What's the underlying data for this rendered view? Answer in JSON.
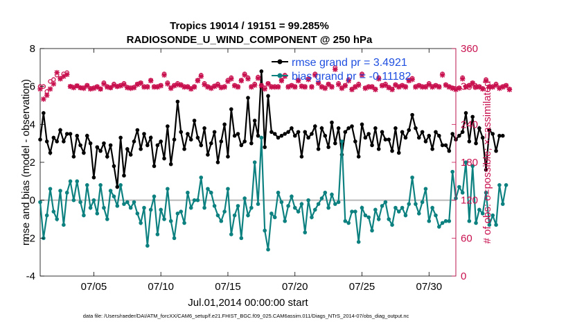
{
  "chart_data": {
    "type": "line",
    "title_line1": "Tropics 19014 / 19151 = 99.285%",
    "title_line2": "RADIOSONDE_U_WIND_COMPONENT @ 250 hPa",
    "xlabel": "Jul.01,2014 00:00:00 start",
    "ylabel_left": "rmse and bias (model - observation)",
    "ylabel_right": "# of obs: o=possible; ×=assimilated",
    "footer": "data file: /Users/raeder/DAI/ATM_forcXX/CAM6_setup/f.e21.FHIST_BGC.f09_025.CAM6assim.011/Diags_NTrS_2014-07/obs_diag_output.nc",
    "xlim": [
      1,
      32
    ],
    "ylim_left": [
      -4,
      8
    ],
    "ylim_right": [
      0,
      360
    ],
    "x_ticks": [
      5,
      10,
      15,
      20,
      25,
      30
    ],
    "x_tick_labels": [
      "07/05",
      "07/10",
      "07/15",
      "07/20",
      "07/25",
      "07/30"
    ],
    "y_left_ticks": [
      -4,
      -2,
      0,
      2,
      4,
      6,
      8
    ],
    "y_left_tick_labels": [
      "-4",
      "-2",
      "0",
      "2",
      "4",
      "6",
      "8"
    ],
    "y_right_ticks": [
      0,
      60,
      120,
      180,
      240,
      300,
      360
    ],
    "y_right_tick_labels": [
      "0",
      "60",
      "120",
      "180",
      "240",
      "300",
      "360"
    ],
    "zero_line": 0,
    "start_x": 1.0,
    "step": 0.25,
    "series": [
      {
        "name": "rmse grand pr = 3.4921",
        "color": "#000000",
        "marker": "star",
        "values": [
          3.2,
          4.6,
          3.1,
          2.5,
          3.3,
          3.1,
          3.7,
          3.1,
          3.5,
          3.5,
          2.3,
          3.4,
          2.9,
          2.5,
          3.4,
          3.0,
          1.2,
          2.8,
          2.6,
          3.0,
          2.3,
          2.9,
          1.8,
          0.7,
          3.3,
          1.3,
          2.7,
          2.4,
          3.1,
          3.7,
          2.7,
          3.5,
          2.9,
          3.3,
          1.8,
          2.9,
          3.1,
          2.2,
          3.9,
          1.9,
          3.2,
          5.2,
          3.6,
          2.7,
          3.5,
          3.2,
          4.2,
          3.3,
          2.9,
          3.8,
          2.4,
          3.0,
          3.6,
          2.0,
          3.1,
          4.0,
          2.3,
          4.8,
          3.4,
          3.5,
          2.9,
          3.1,
          5.4,
          3.0,
          4.2,
          3.4,
          6.8,
          2.8,
          5.5,
          3.6,
          3.5,
          3.3,
          3.4,
          3.5,
          3.6,
          3.8,
          3.4,
          3.6,
          2.3,
          3.6,
          3.3,
          3.5,
          3.9,
          2.7,
          3.8,
          3.4,
          2.8,
          4.1,
          3.0,
          3.8,
          2.4,
          3.6,
          3.8,
          3.9,
          3.1,
          2.3,
          4.0,
          3.3,
          3.5,
          2.9,
          3.8,
          2.7,
          3.6,
          3.2,
          3.2,
          2.6,
          3.8,
          2.5,
          3.6,
          3.3,
          3.7,
          4.5,
          3.8,
          3.3,
          3.6,
          3.1,
          3.4,
          2.7,
          3.6,
          3.4,
          2.9,
          2.9,
          2.6,
          3.5,
          3.2,
          3.4,
          3.6,
          4.6,
          3.1,
          4.4,
          3.0,
          3.8,
          3.3,
          1.6,
          3.7,
          3.5,
          2.6,
          3.4,
          3.4
        ]
      },
      {
        "name": "bias grand pr = -0.11182",
        "color": "#0d8080",
        "marker": "dot",
        "values": [
          -0.1,
          -2.0,
          -0.8,
          0.6,
          -0.6,
          -1.0,
          0.5,
          -1.3,
          0.4,
          1.0,
          0.0,
          1.0,
          -0.1,
          -0.8,
          0.8,
          -0.4,
          0.0,
          -0.7,
          0.8,
          -0.4,
          -1.0,
          0.5,
          0.2,
          -0.3,
          0.8,
          -0.2,
          -0.1,
          -0.4,
          -0.1,
          -0.7,
          -1.2,
          -0.4,
          -2.4,
          -0.5,
          0.2,
          -1.8,
          -0.5,
          -1.0,
          0.6,
          -1.1,
          -2.0,
          -0.7,
          -0.6,
          -1.2,
          0.4,
          -0.4,
          0.0,
          0.0,
          1.2,
          -0.4,
          0.6,
          0.4,
          -0.3,
          -0.8,
          -1.1,
          -0.6,
          0.6,
          -1.8,
          -0.8,
          -0.3,
          -2.0,
          0.1,
          -0.8,
          -0.4,
          2.0,
          -0.2,
          3.3,
          -1.6,
          -2.6,
          -0.7,
          -0.9,
          0.4,
          -0.1,
          -1.1,
          -0.3,
          0.2,
          -0.4,
          -0.6,
          -0.2,
          -1.7,
          0.0,
          -0.9,
          -0.5,
          -0.2,
          0.1,
          0.4,
          -0.4,
          0.3,
          -0.2,
          -0.1,
          3.1,
          -1.1,
          -1.2,
          -0.6,
          -0.6,
          -2.2,
          -0.4,
          -0.8,
          -0.9,
          -1.6,
          -0.5,
          -1.0,
          -0.3,
          -0.1,
          -1.0,
          -1.3,
          -0.4,
          -0.6,
          -0.4,
          -0.8,
          -0.2,
          1.2,
          -0.2,
          -0.7,
          -0.1,
          0.6,
          -1.1,
          -0.4,
          -0.8,
          -1.4,
          -1.2,
          -1.1,
          -1.1,
          1.5,
          0.1,
          0.7,
          0.4,
          2.0,
          -1.1,
          1.8,
          -1.2,
          -0.5,
          -0.7,
          0.4,
          -1.3,
          -0.8,
          -1.3,
          0.8,
          -0.2,
          0.8
        ]
      },
      {
        "name": "possible obs",
        "color": "#c8104f",
        "marker": "circle",
        "axis": "right",
        "values": [
          300,
          300,
          292,
          308,
          311,
          318,
          313,
          320,
          322,
          300,
          299,
          301,
          298,
          298,
          302,
          297,
          298,
          300,
          296,
          306,
          300,
          298,
          304,
          300,
          302,
          305,
          299,
          298,
          299,
          304,
          306,
          300,
          300,
          310,
          300,
          300,
          302,
          320,
          306,
          298,
          302,
          305,
          303,
          300,
          300,
          297,
          300,
          310,
          318,
          305,
          300,
          298,
          301,
          304,
          299,
          300,
          310,
          314,
          302,
          300,
          310,
          320,
          314,
          300,
          304,
          315,
          302,
          298,
          305,
          300,
          300,
          300,
          310,
          318,
          300,
          302,
          300,
          310,
          301,
          300,
          312,
          300,
          320,
          306,
          300,
          298,
          304,
          300,
          330,
          305,
          298,
          302,
          311,
          296,
          300,
          304,
          320,
          298,
          300,
          300,
          296,
          314,
          302,
          304,
          299,
          296,
          303,
          300,
          302,
          300,
          310,
          313,
          300,
          302,
          300,
          300,
          305,
          300,
          302,
          300,
          320,
          303,
          300,
          298,
          296,
          298,
          314,
          300,
          302,
          306,
          300,
          300,
          297,
          311,
          300,
          300,
          304,
          298,
          300,
          302,
          296
        ]
      },
      {
        "name": "assimilated obs",
        "color": "#c8104f",
        "marker": "x",
        "axis": "right",
        "values": [
          296,
          280,
          286,
          296,
          304,
          322,
          312,
          316,
          319,
          300,
          298,
          301,
          298,
          297,
          301,
          296,
          297,
          299,
          296,
          304,
          299,
          298,
          302,
          300,
          301,
          303,
          298,
          297,
          298,
          303,
          305,
          299,
          299,
          309,
          299,
          299,
          301,
          318,
          304,
          297,
          301,
          303,
          302,
          299,
          299,
          296,
          299,
          309,
          316,
          303,
          299,
          297,
          300,
          302,
          298,
          299,
          308,
          312,
          301,
          299,
          309,
          318,
          312,
          299,
          302,
          313,
          301,
          296,
          304,
          299,
          299,
          299,
          309,
          316,
          299,
          301,
          299,
          309,
          300,
          299,
          311,
          299,
          318,
          305,
          299,
          297,
          303,
          299,
          327,
          303,
          297,
          301,
          309,
          295,
          299,
          302,
          318,
          297,
          299,
          299,
          295,
          312,
          301,
          302,
          298,
          295,
          302,
          299,
          301,
          299,
          309,
          311,
          299,
          301,
          299,
          299,
          303,
          299,
          301,
          299,
          318,
          302,
          299,
          297,
          295,
          297,
          312,
          299,
          301,
          305,
          299,
          299,
          296,
          309,
          299,
          299,
          302,
          297,
          299,
          301,
          295
        ]
      }
    ]
  }
}
